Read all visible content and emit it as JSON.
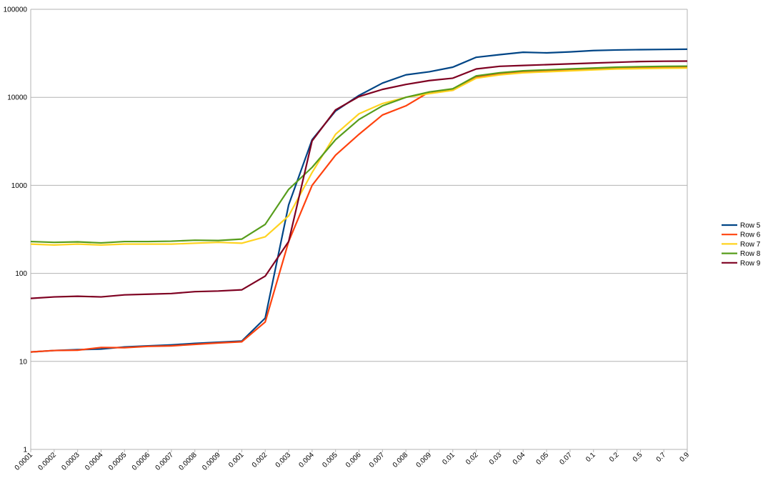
{
  "chart_data": {
    "type": "line",
    "title": "",
    "xlabel": "",
    "ylabel": "",
    "y_scale": "log",
    "ylim": [
      1,
      100000
    ],
    "y_ticks": [
      "1",
      "10",
      "100",
      "1000",
      "10000",
      "100000"
    ],
    "grid": "horizontal",
    "legend_position": "right",
    "categories": [
      "0.0001",
      "0.0002",
      "0.0003",
      "0.0004",
      "0.0005",
      "0.0006",
      "0.0007",
      "0.0008",
      "0.0009",
      "0.001",
      "0.002",
      "0.003",
      "0.004",
      "0.005",
      "0.006",
      "0.007",
      "0.008",
      "0.009",
      "0.01",
      "0.02",
      "0.03",
      "0.04",
      "0.05",
      "0.07",
      "0.1",
      "0.2",
      "0.5",
      "0.7",
      "0.9"
    ],
    "series": [
      {
        "name": "Row 5",
        "color": "#004586",
        "values": [
          12.8,
          13.3,
          13.6,
          13.8,
          14.6,
          15,
          15.4,
          16,
          16.5,
          17,
          31,
          600,
          3300,
          7000,
          10500,
          14500,
          18000,
          19500,
          22000,
          28500,
          30500,
          32500,
          32000,
          32800,
          34000,
          34500,
          34800,
          35000,
          35200
        ]
      },
      {
        "name": "Row 6",
        "color": "#ff420e",
        "values": [
          12.8,
          13.3,
          13.4,
          14.4,
          14.3,
          14.8,
          15,
          15.6,
          16.2,
          16.7,
          28,
          230,
          1000,
          2200,
          3800,
          6300,
          8000,
          11500,
          12000,
          17000,
          18500,
          19500,
          20000,
          20500,
          21000,
          21500,
          21800,
          22000,
          22000
        ]
      },
      {
        "name": "Row 7",
        "color": "#ffd320",
        "values": [
          215,
          210,
          215,
          210,
          215,
          215,
          215,
          220,
          225,
          220,
          260,
          450,
          1400,
          3800,
          6500,
          8500,
          10000,
          11000,
          12000,
          16500,
          18000,
          19000,
          19500,
          20000,
          20500,
          21000,
          21200,
          21400,
          21500
        ]
      },
      {
        "name": "Row 8",
        "color": "#579d1c",
        "values": [
          230,
          225,
          228,
          222,
          230,
          230,
          232,
          238,
          236,
          245,
          360,
          900,
          1600,
          3300,
          5600,
          8000,
          10000,
          11500,
          12500,
          17500,
          19000,
          20000,
          20500,
          21000,
          21500,
          22000,
          22300,
          22500,
          22600
        ]
      },
      {
        "name": "Row 9",
        "color": "#7e0021",
        "values": [
          52,
          54,
          55,
          54,
          57,
          58,
          59,
          62,
          63,
          65,
          93,
          230,
          3200,
          7200,
          10200,
          12300,
          14000,
          15500,
          16500,
          21000,
          22500,
          23000,
          23500,
          24000,
          24500,
          25000,
          25500,
          25700,
          25800
        ]
      }
    ]
  }
}
